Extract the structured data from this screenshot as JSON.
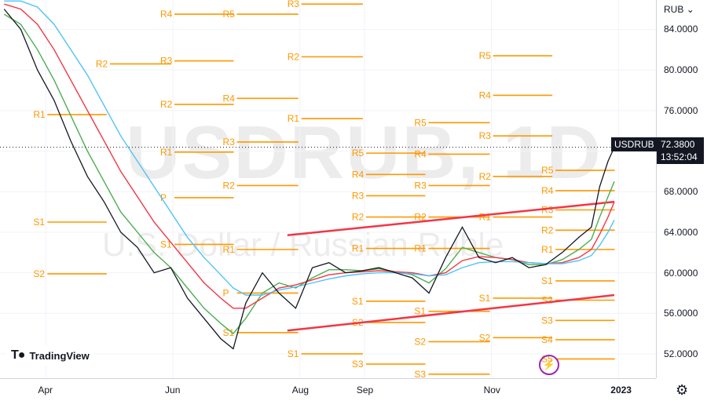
{
  "chart_data": {
    "type": "line",
    "symbol_watermark": "USDRUB, 1D",
    "subtitle_watermark": "U.S. Dollar / Russian Ruble",
    "currency": "RUB",
    "y_ticks": [
      "84.0000",
      "80.0000",
      "76.0000",
      "72.0000",
      "68.0000",
      "64.0000",
      "60.0000",
      "56.0000",
      "52.0000"
    ],
    "y_tick_values": [
      84,
      80,
      76,
      72,
      68,
      64,
      60,
      56,
      52
    ],
    "ylim": [
      49.6,
      86.9
    ],
    "x_ticks": [
      "Apr",
      "Jun",
      "Aug",
      "Sep",
      "Nov",
      "2023"
    ],
    "x_tick_dates": [
      "2022-04-01",
      "2022-06-01",
      "2022-08-01",
      "2022-09-01",
      "2022-11-01",
      "2023-01-01"
    ],
    "xlim": [
      "2022-03-10",
      "2023-01-19"
    ],
    "last_price": "72.3800",
    "countdown": "13:52:04",
    "badge_symbol": "USDRUB",
    "price_series": {
      "name": "USDRUB",
      "dates": [
        "2022-03-12",
        "2022-03-20",
        "2022-03-28",
        "2022-04-05",
        "2022-04-13",
        "2022-04-21",
        "2022-04-29",
        "2022-05-07",
        "2022-05-15",
        "2022-05-23",
        "2022-05-31",
        "2022-06-08",
        "2022-06-16",
        "2022-06-24",
        "2022-06-30",
        "2022-07-06",
        "2022-07-14",
        "2022-07-22",
        "2022-07-30",
        "2022-08-07",
        "2022-08-15",
        "2022-08-23",
        "2022-08-31",
        "2022-09-08",
        "2022-09-16",
        "2022-09-24",
        "2022-10-02",
        "2022-10-10",
        "2022-10-18",
        "2022-10-26",
        "2022-11-03",
        "2022-11-11",
        "2022-11-19",
        "2022-11-27",
        "2022-12-05",
        "2022-12-13",
        "2022-12-19",
        "2022-12-23",
        "2022-12-27",
        "2022-12-30"
      ],
      "values": [
        86.0,
        84.0,
        80.0,
        77.0,
        73.0,
        69.5,
        67.0,
        64.0,
        62.5,
        60.0,
        60.5,
        57.5,
        55.5,
        53.5,
        52.5,
        57.0,
        60.0,
        58.0,
        56.5,
        60.5,
        61.0,
        60.0,
        60.2,
        60.5,
        60.0,
        59.5,
        58.0,
        61.5,
        64.5,
        61.5,
        61.0,
        61.5,
        60.5,
        60.8,
        62.0,
        63.5,
        64.5,
        68.5,
        71.0,
        72.38
      ]
    },
    "moving_averages": [
      {
        "color": "#4caf50",
        "values": [
          85.5,
          84.5,
          82.0,
          79.0,
          75.5,
          72.0,
          69.0,
          66.0,
          64.0,
          62.0,
          60.5,
          58.5,
          56.5,
          55.0,
          54.0,
          55.5,
          58.0,
          59.0,
          58.5,
          59.5,
          60.3,
          60.3,
          60.2,
          60.4,
          60.1,
          59.8,
          59.0,
          60.4,
          62.5,
          62.0,
          61.5,
          61.3,
          60.8,
          60.8,
          61.3,
          62.3,
          63.3,
          65.5,
          67.5,
          69.0
        ]
      },
      {
        "color": "#f23645",
        "values": [
          86.5,
          86.0,
          84.5,
          82.0,
          79.0,
          76.0,
          73.0,
          70.0,
          67.5,
          65.0,
          63.0,
          61.0,
          59.0,
          57.5,
          56.5,
          56.5,
          57.5,
          58.5,
          58.8,
          59.3,
          59.8,
          60.0,
          60.1,
          60.2,
          60.1,
          60.0,
          59.7,
          60.0,
          61.2,
          61.6,
          61.5,
          61.3,
          61.0,
          60.9,
          61.0,
          61.5,
          62.3,
          63.8,
          65.5,
          67.0
        ]
      },
      {
        "color": "#4fc3f7",
        "values": [
          86.8,
          86.8,
          86.2,
          84.5,
          82.0,
          79.5,
          76.5,
          73.5,
          71.0,
          68.5,
          66.0,
          63.5,
          61.5,
          59.8,
          58.5,
          57.8,
          57.8,
          58.3,
          58.6,
          59.0,
          59.4,
          59.7,
          59.9,
          60.0,
          60.0,
          59.9,
          59.7,
          59.8,
          60.5,
          61.0,
          61.1,
          61.1,
          61.0,
          60.9,
          60.9,
          61.2,
          61.7,
          62.7,
          64.0,
          65.2
        ]
      }
    ],
    "channel_lines": [
      {
        "color": "#f23645",
        "x": [
          "2022-07-26",
          "2022-12-30"
        ],
        "y": [
          63.7,
          67.0
        ]
      },
      {
        "color": "#f23645",
        "x": [
          "2022-07-26",
          "2022-12-30"
        ],
        "y": [
          54.3,
          57.8
        ]
      }
    ],
    "pivot_segments": [
      {
        "label": "R2",
        "x": [
          "2022-05-01",
          "2022-06-01"
        ],
        "y": 80.6
      },
      {
        "label": "R1",
        "x": [
          "2022-04-01",
          "2022-05-01"
        ],
        "y": 75.6
      },
      {
        "label": "S1",
        "x": [
          "2022-04-01",
          "2022-05-01"
        ],
        "y": 65.0
      },
      {
        "label": "S2",
        "x": [
          "2022-04-01",
          "2022-05-01"
        ],
        "y": 59.9
      },
      {
        "label": "R4",
        "x": [
          "2022-06-01",
          "2022-07-01"
        ],
        "y": 85.5
      },
      {
        "label": "R3",
        "x": [
          "2022-06-01",
          "2022-07-01"
        ],
        "y": 80.9
      },
      {
        "label": "R2",
        "x": [
          "2022-06-01",
          "2022-07-01"
        ],
        "y": 76.6
      },
      {
        "label": "R1",
        "x": [
          "2022-06-01",
          "2022-07-01"
        ],
        "y": 71.9
      },
      {
        "label": "P",
        "x": [
          "2022-06-01",
          "2022-07-01"
        ],
        "y": 67.4
      },
      {
        "label": "S1",
        "x": [
          "2022-06-01",
          "2022-07-01"
        ],
        "y": 62.8
      },
      {
        "label": "R5",
        "x": [
          "2022-07-01",
          "2022-08-01"
        ],
        "y": 85.5
      },
      {
        "label": "R4",
        "x": [
          "2022-07-01",
          "2022-08-01"
        ],
        "y": 77.2
      },
      {
        "label": "R3",
        "x": [
          "2022-07-01",
          "2022-08-01"
        ],
        "y": 72.9
      },
      {
        "label": "R2",
        "x": [
          "2022-07-01",
          "2022-08-01"
        ],
        "y": 68.6
      },
      {
        "label": "R1",
        "x": [
          "2022-07-01",
          "2022-08-01"
        ],
        "y": 62.3
      },
      {
        "label": "P",
        "x": [
          "2022-07-01",
          "2022-08-01"
        ],
        "y": 58.0
      },
      {
        "label": "S1",
        "x": [
          "2022-07-01",
          "2022-08-01"
        ],
        "y": 54.1
      },
      {
        "label": "R3",
        "x": [
          "2022-08-01",
          "2022-09-01"
        ],
        "y": 86.5
      },
      {
        "label": "R2",
        "x": [
          "2022-08-01",
          "2022-09-01"
        ],
        "y": 81.3
      },
      {
        "label": "R1",
        "x": [
          "2022-08-01",
          "2022-09-01"
        ],
        "y": 75.2
      },
      {
        "label": "S1",
        "x": [
          "2022-08-01",
          "2022-09-01"
        ],
        "y": 52.0
      },
      {
        "label": "R5",
        "x": [
          "2022-09-01",
          "2022-10-01"
        ],
        "y": 71.8
      },
      {
        "label": "R4",
        "x": [
          "2022-09-01",
          "2022-10-01"
        ],
        "y": 69.7
      },
      {
        "label": "R3",
        "x": [
          "2022-09-01",
          "2022-10-01"
        ],
        "y": 67.6
      },
      {
        "label": "R2",
        "x": [
          "2022-09-01",
          "2022-10-01"
        ],
        "y": 65.5
      },
      {
        "label": "R1",
        "x": [
          "2022-09-01",
          "2022-10-01"
        ],
        "y": 62.4
      },
      {
        "label": "S1",
        "x": [
          "2022-09-01",
          "2022-10-01"
        ],
        "y": 57.2
      },
      {
        "label": "S2",
        "x": [
          "2022-09-01",
          "2022-10-01"
        ],
        "y": 55.1
      },
      {
        "label": "S3",
        "x": [
          "2022-09-01",
          "2022-10-01"
        ],
        "y": 51.0
      },
      {
        "label": "R5",
        "x": [
          "2022-10-01",
          "2022-11-01"
        ],
        "y": 74.8
      },
      {
        "label": "R4",
        "x": [
          "2022-10-01",
          "2022-11-01"
        ],
        "y": 71.7
      },
      {
        "label": "R3",
        "x": [
          "2022-10-01",
          "2022-11-01"
        ],
        "y": 68.6
      },
      {
        "label": "R2",
        "x": [
          "2022-10-01",
          "2022-11-01"
        ],
        "y": 65.5
      },
      {
        "label": "R1",
        "x": [
          "2022-10-01",
          "2022-11-01"
        ],
        "y": 62.4
      },
      {
        "label": "S1",
        "x": [
          "2022-10-01",
          "2022-11-01"
        ],
        "y": 56.2
      },
      {
        "label": "S2",
        "x": [
          "2022-10-01",
          "2022-11-01"
        ],
        "y": 53.2
      },
      {
        "label": "S3",
        "x": [
          "2022-10-01",
          "2022-11-01"
        ],
        "y": 50.0
      },
      {
        "label": "R5",
        "x": [
          "2022-11-01",
          "2022-12-01"
        ],
        "y": 81.4
      },
      {
        "label": "R4",
        "x": [
          "2022-11-01",
          "2022-12-01"
        ],
        "y": 77.5
      },
      {
        "label": "R3",
        "x": [
          "2022-11-01",
          "2022-12-01"
        ],
        "y": 73.5
      },
      {
        "label": "R2",
        "x": [
          "2022-11-01",
          "2022-12-01"
        ],
        "y": 69.5
      },
      {
        "label": "R1",
        "x": [
          "2022-11-01",
          "2022-12-01"
        ],
        "y": 65.5
      },
      {
        "label": "S1",
        "x": [
          "2022-11-01",
          "2022-12-01"
        ],
        "y": 57.5
      },
      {
        "label": "S2",
        "x": [
          "2022-11-01",
          "2022-12-01"
        ],
        "y": 53.6
      },
      {
        "label": "R5",
        "x": [
          "2022-12-01",
          "2022-12-31"
        ],
        "y": 70.1
      },
      {
        "label": "R4",
        "x": [
          "2022-12-01",
          "2022-12-31"
        ],
        "y": 68.1
      },
      {
        "label": "R3",
        "x": [
          "2022-12-01",
          "2022-12-31"
        ],
        "y": 66.2
      },
      {
        "label": "R2",
        "x": [
          "2022-12-01",
          "2022-12-31"
        ],
        "y": 64.2
      },
      {
        "label": "R1",
        "x": [
          "2022-12-01",
          "2022-12-31"
        ],
        "y": 62.3
      },
      {
        "label": "S1",
        "x": [
          "2022-12-01",
          "2022-12-31"
        ],
        "y": 59.2
      },
      {
        "label": "S2",
        "x": [
          "2022-12-01",
          "2022-12-31"
        ],
        "y": 57.3
      },
      {
        "label": "S3",
        "x": [
          "2022-12-01",
          "2022-12-31"
        ],
        "y": 55.3
      },
      {
        "label": "S4",
        "x": [
          "2022-12-01",
          "2022-12-31"
        ],
        "y": 53.4
      },
      {
        "label": "S5",
        "x": [
          "2022-12-01",
          "2022-12-31"
        ],
        "y": 51.5
      }
    ],
    "pivot_color": "#ff9800",
    "grid": true
  },
  "branding": {
    "name": "TradingView"
  }
}
